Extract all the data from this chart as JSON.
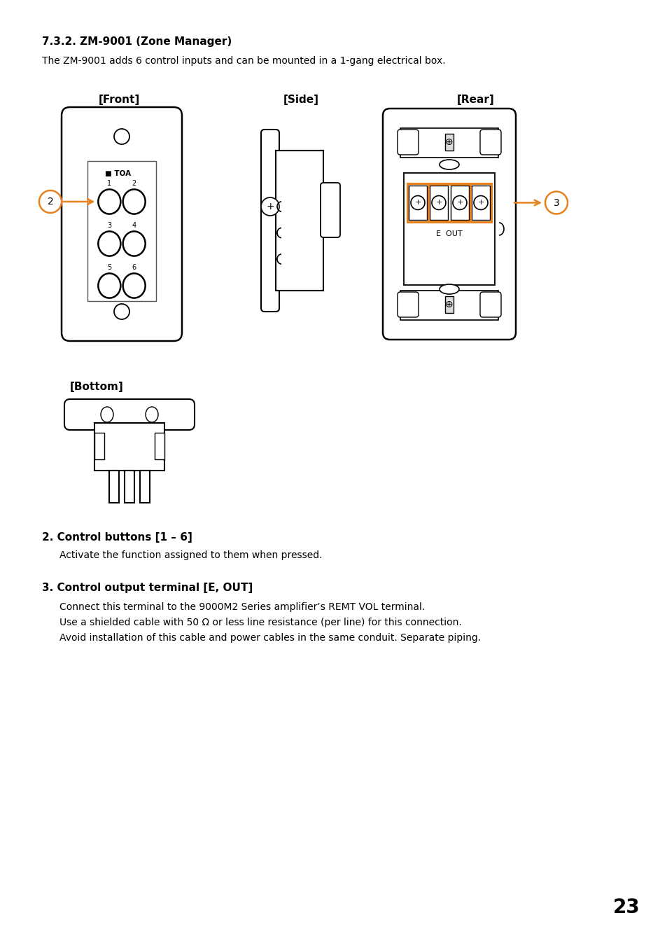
{
  "title": "7.3.2. ZM-9001 (Zone Manager)",
  "subtitle": "The ZM-9001 adds 6 control inputs and can be mounted in a 1-gang electrical box.",
  "label_front": "[Front]",
  "label_side": "[Side]",
  "label_rear": "[Rear]",
  "label_bottom": "[Bottom]",
  "item2_title": "2. Control buttons [1 – 6]",
  "item2_body": "Activate the function assigned to them when pressed.",
  "item3_title": "3. Control output terminal [E, OUT]",
  "item3_line1": "Connect this terminal to the 9000M2 Series amplifier’s REMT VOL terminal.",
  "item3_line2": "Use a shielded cable with 50 Ω or less line resistance (per line) for this connection.",
  "item3_line3": "Avoid installation of this cable and power cables in the same conduit. Separate piping.",
  "page_number": "23",
  "bg_color": "#ffffff",
  "text_color": "#000000",
  "orange_color": "#e8821e",
  "line_color": "#000000"
}
